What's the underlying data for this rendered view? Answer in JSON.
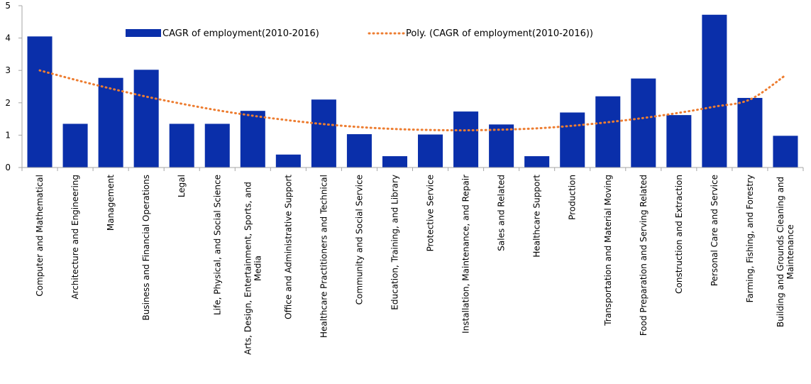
{
  "chart_data": {
    "type": "bar",
    "title": "",
    "xlabel": "",
    "ylabel": "",
    "ylim": [
      0,
      5
    ],
    "yticks": [
      0,
      1,
      2,
      3,
      4,
      5
    ],
    "grid": false,
    "legend_position": "top",
    "categories": [
      "Computer and Mathematical",
      "Architecture and Engineering",
      "Management",
      "Business and Financial Operations",
      "Legal",
      "Life, Physical, and Social Science",
      "Arts, Design, Entertainment, Sports, and Media",
      "Office and Administrative Support",
      "Healthcare Practitioners and Technical",
      "Community and Social Service",
      "Education, Training, and Library",
      "Protective Service",
      "Installation, Maintenance, and Repair",
      "Sales and Related",
      "Healthcare Support",
      "Production",
      "Transportation and Material Moving",
      "Food Preparation and Serving Related",
      "Construction and Extraction",
      "Personal Care and Service",
      "Farming, Fishing, and Forestry",
      "Building and Grounds Cleaning and Maintenance"
    ],
    "series": [
      {
        "name": "CAGR of employment(2010-2016)",
        "type": "bar",
        "color": "#0a2faa",
        "values": [
          4.05,
          1.35,
          2.77,
          3.02,
          1.35,
          1.35,
          1.75,
          0.4,
          2.1,
          1.03,
          0.35,
          1.02,
          1.73,
          1.33,
          0.35,
          1.7,
          2.2,
          2.75,
          1.62,
          4.72,
          2.15,
          0.98
        ]
      },
      {
        "name": "Poly. (CAGR of employment(2010-2016))",
        "type": "trendline",
        "color": "#ed7d31",
        "values": [
          3.0,
          2.71,
          2.44,
          2.19,
          1.97,
          1.77,
          1.6,
          1.46,
          1.34,
          1.25,
          1.19,
          1.16,
          1.15,
          1.17,
          1.21,
          1.29,
          1.4,
          1.53,
          1.69,
          1.88,
          2.1,
          2.85
        ]
      }
    ]
  }
}
